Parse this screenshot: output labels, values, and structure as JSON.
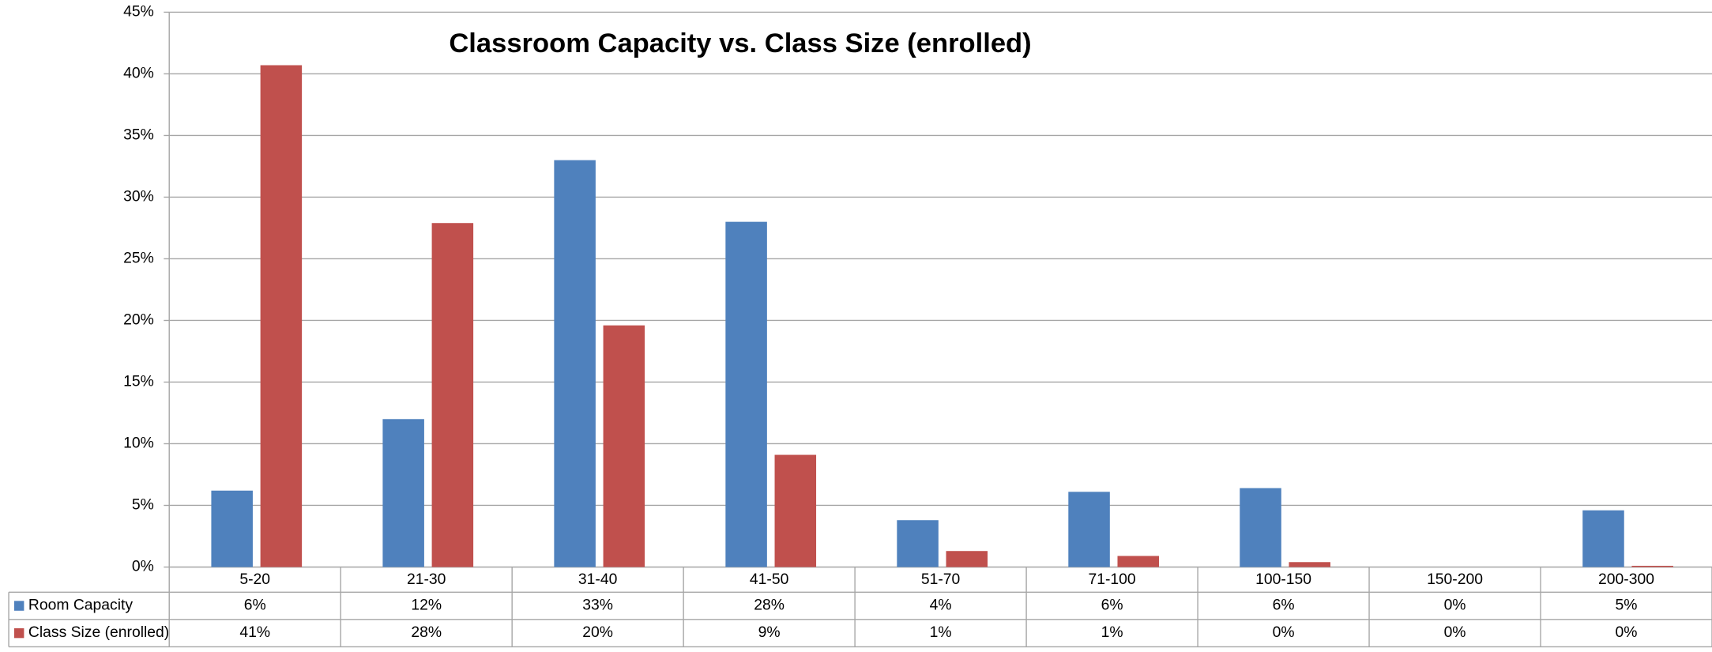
{
  "chart_data": {
    "type": "bar",
    "title": "Classroom Capacity vs. Class Size (enrolled)",
    "categories": [
      "5-20",
      "21-30",
      "31-40",
      "41-50",
      "51-70",
      "71-100",
      "100-150",
      "150-200",
      "200-300"
    ],
    "series": [
      {
        "name": "Room Capacity",
        "color": "#4f81bd",
        "values": [
          6.2,
          12,
          33,
          28,
          3.8,
          6.1,
          6.4,
          0,
          4.6
        ],
        "value_labels": [
          "6%",
          "12%",
          "33%",
          "28%",
          "4%",
          "6%",
          "6%",
          "0%",
          "5%"
        ]
      },
      {
        "name": "Class Size (enrolled)",
        "color": "#c0504d",
        "values": [
          40.7,
          27.9,
          19.6,
          9.1,
          1.3,
          0.9,
          0.4,
          0,
          0.1
        ],
        "value_labels": [
          "41%",
          "28%",
          "20%",
          "9%",
          "1%",
          "1%",
          "0%",
          "0%",
          "0%"
        ]
      }
    ],
    "ylim": [
      0,
      45
    ],
    "yticks": [
      {
        "value": 0,
        "label": "0%"
      },
      {
        "value": 5,
        "label": "5%"
      },
      {
        "value": 10,
        "label": "10%"
      },
      {
        "value": 15,
        "label": "15%"
      },
      {
        "value": 20,
        "label": "20%"
      },
      {
        "value": 25,
        "label": "25%"
      },
      {
        "value": 30,
        "label": "30%"
      },
      {
        "value": 35,
        "label": "35%"
      },
      {
        "value": 40,
        "label": "40%"
      },
      {
        "value": 45,
        "label": "45%"
      }
    ],
    "grid": true
  }
}
